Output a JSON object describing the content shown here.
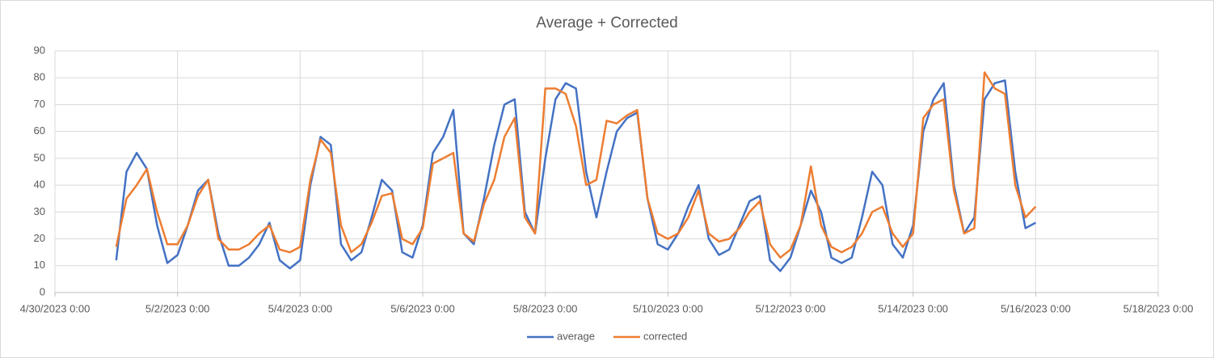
{
  "chart_data": {
    "type": "line",
    "title": "Average + Corrected",
    "x": [
      "5/1/2023 0:00",
      "5/1/2023 4:00",
      "5/1/2023 8:00",
      "5/1/2023 12:00",
      "5/1/2023 16:00",
      "5/1/2023 20:00",
      "5/2/2023 0:00",
      "5/2/2023 4:00",
      "5/2/2023 8:00",
      "5/2/2023 12:00",
      "5/2/2023 16:00",
      "5/2/2023 20:00",
      "5/3/2023 0:00",
      "5/3/2023 4:00",
      "5/3/2023 8:00",
      "5/3/2023 12:00",
      "5/3/2023 16:00",
      "5/3/2023 20:00",
      "5/4/2023 0:00",
      "5/4/2023 4:00",
      "5/4/2023 8:00",
      "5/4/2023 12:00",
      "5/4/2023 16:00",
      "5/4/2023 20:00",
      "5/5/2023 0:00",
      "5/5/2023 4:00",
      "5/5/2023 8:00",
      "5/5/2023 12:00",
      "5/5/2023 16:00",
      "5/5/2023 20:00",
      "5/6/2023 0:00",
      "5/6/2023 4:00",
      "5/6/2023 8:00",
      "5/6/2023 12:00",
      "5/6/2023 16:00",
      "5/6/2023 20:00",
      "5/7/2023 0:00",
      "5/7/2023 4:00",
      "5/7/2023 8:00",
      "5/7/2023 12:00",
      "5/7/2023 16:00",
      "5/7/2023 20:00",
      "5/8/2023 0:00",
      "5/8/2023 4:00",
      "5/8/2023 8:00",
      "5/8/2023 12:00",
      "5/8/2023 16:00",
      "5/8/2023 20:00",
      "5/9/2023 0:00",
      "5/9/2023 4:00",
      "5/9/2023 8:00",
      "5/9/2023 12:00",
      "5/9/2023 16:00",
      "5/9/2023 20:00",
      "5/10/2023 0:00",
      "5/10/2023 4:00",
      "5/10/2023 8:00",
      "5/10/2023 12:00",
      "5/10/2023 16:00",
      "5/10/2023 20:00",
      "5/11/2023 0:00",
      "5/11/2023 4:00",
      "5/11/2023 8:00",
      "5/11/2023 12:00",
      "5/11/2023 16:00",
      "5/11/2023 20:00",
      "5/12/2023 0:00",
      "5/12/2023 4:00",
      "5/12/2023 8:00",
      "5/12/2023 12:00",
      "5/12/2023 16:00",
      "5/12/2023 20:00",
      "5/13/2023 0:00",
      "5/13/2023 4:00",
      "5/13/2023 8:00",
      "5/13/2023 12:00",
      "5/13/2023 16:00",
      "5/13/2023 20:00",
      "5/14/2023 0:00",
      "5/14/2023 4:00",
      "5/14/2023 8:00",
      "5/14/2023 12:00",
      "5/14/2023 16:00",
      "5/14/2023 20:00",
      "5/15/2023 0:00",
      "5/15/2023 4:00",
      "5/15/2023 8:00",
      "5/15/2023 12:00",
      "5/15/2023 16:00",
      "5/15/2023 20:00",
      "5/16/2023 0:00"
    ],
    "series": [
      {
        "name": "average",
        "color": "#4472c4",
        "values": [
          12,
          45,
          52,
          46,
          25,
          11,
          14,
          25,
          38,
          42,
          22,
          10,
          10,
          13,
          18,
          26,
          12,
          9,
          12,
          40,
          58,
          55,
          18,
          12,
          15,
          28,
          42,
          38,
          15,
          13,
          25,
          52,
          58,
          68,
          22,
          18,
          35,
          55,
          70,
          72,
          30,
          22,
          50,
          72,
          78,
          76,
          45,
          28,
          45,
          60,
          65,
          67,
          35,
          18,
          16,
          22,
          32,
          40,
          20,
          14,
          16,
          25,
          34,
          36,
          12,
          8,
          13,
          25,
          38,
          30,
          13,
          11,
          13,
          28,
          45,
          40,
          18,
          13,
          25,
          60,
          72,
          78,
          40,
          22,
          28,
          72,
          78,
          79,
          45,
          24,
          26
        ]
      },
      {
        "name": "corrected",
        "color": "#ed7d31",
        "values": [
          17,
          35,
          40,
          46,
          30,
          18,
          18,
          25,
          36,
          42,
          20,
          16,
          16,
          18,
          22,
          25,
          16,
          15,
          17,
          42,
          57,
          52,
          25,
          15,
          18,
          26,
          36,
          37,
          20,
          18,
          24,
          48,
          50,
          52,
          22,
          19,
          33,
          42,
          58,
          65,
          28,
          22,
          76,
          76,
          74,
          62,
          40,
          42,
          64,
          63,
          66,
          68,
          35,
          22,
          20,
          22,
          28,
          38,
          22,
          19,
          20,
          24,
          30,
          34,
          18,
          13,
          16,
          25,
          47,
          25,
          17,
          15,
          17,
          22,
          30,
          32,
          22,
          17,
          22,
          65,
          70,
          72,
          38,
          22,
          24,
          82,
          76,
          74,
          40,
          28,
          32
        ]
      }
    ],
    "xlim": [
      "4/30/2023 0:00",
      "5/18/2023 0:00"
    ],
    "xticks": [
      "4/30/2023 0:00",
      "5/2/2023 0:00",
      "5/4/2023 0:00",
      "5/6/2023 0:00",
      "5/8/2023 0:00",
      "5/10/2023 0:00",
      "5/12/2023 0:00",
      "5/14/2023 0:00",
      "5/16/2023 0:00",
      "5/18/2023 0:00"
    ],
    "ylim": [
      0,
      90
    ],
    "yticks": [
      0,
      10,
      20,
      30,
      40,
      50,
      60,
      70,
      80,
      90
    ],
    "grid": true,
    "legend": "bottom"
  }
}
